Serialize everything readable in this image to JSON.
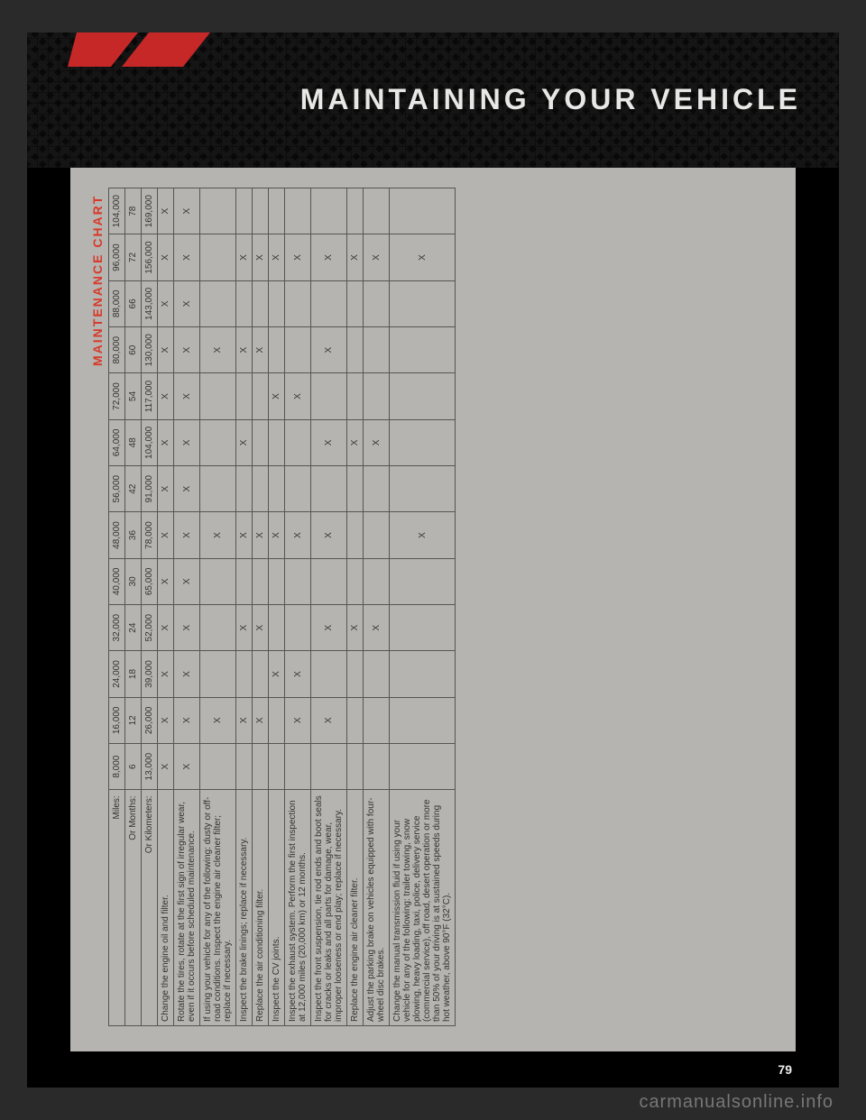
{
  "header": {
    "title": "MAINTAINING YOUR VEHICLE",
    "stripe_color": "#c62828",
    "stripe_shadow": "#000000"
  },
  "section_title": "MAINTENANCE CHART",
  "page_number": "79",
  "watermark": "carmanualsonline.info",
  "colors": {
    "page_bg": "#b5b4b0",
    "border": "#555555",
    "text": "#333333",
    "accent": "#d83a2b"
  },
  "chart": {
    "header_rows": [
      {
        "label": "Miles:",
        "values": [
          "8,000",
          "16,000",
          "24,000",
          "32,000",
          "40,000",
          "48,000",
          "56,000",
          "64,000",
          "72,000",
          "80,000",
          "88,000",
          "96,000",
          "104,000"
        ]
      },
      {
        "label": "Or Months:",
        "values": [
          "6",
          "12",
          "18",
          "24",
          "30",
          "36",
          "42",
          "48",
          "54",
          "60",
          "66",
          "72",
          "78"
        ]
      },
      {
        "label": "Or Kilometers:",
        "values": [
          "13,000",
          "26,000",
          "39,000",
          "52,000",
          "65,000",
          "78,000",
          "91,000",
          "104,000",
          "117,000",
          "130,000",
          "143,000",
          "156,000",
          "169,000"
        ]
      }
    ],
    "rows": [
      {
        "desc": "Change the engine oil and filter.",
        "marks": [
          1,
          1,
          1,
          1,
          1,
          1,
          1,
          1,
          1,
          1,
          1,
          1,
          1
        ]
      },
      {
        "desc": "Rotate the tires, rotate at the first sign of irregular wear, even if it occurs before scheduled maintenance.",
        "marks": [
          1,
          1,
          1,
          1,
          1,
          1,
          1,
          1,
          1,
          1,
          1,
          1,
          1
        ]
      },
      {
        "desc": "If using your vehicle for any of the following: dusty or off-road conditions. Inspect the engine air cleaner filter; replace if necessary.",
        "marks": [
          0,
          1,
          0,
          0,
          0,
          1,
          0,
          0,
          0,
          1,
          0,
          0,
          0
        ]
      },
      {
        "desc": "Inspect the brake linings; replace if necessary.",
        "marks": [
          0,
          1,
          0,
          1,
          0,
          1,
          0,
          1,
          0,
          1,
          0,
          1,
          0
        ]
      },
      {
        "desc": "Replace the air conditioning filter.",
        "marks": [
          0,
          1,
          0,
          1,
          0,
          1,
          0,
          0,
          0,
          1,
          0,
          1,
          0
        ]
      },
      {
        "desc": "Inspect the CV joints.",
        "marks": [
          0,
          0,
          1,
          0,
          0,
          1,
          0,
          0,
          1,
          0,
          0,
          1,
          0
        ]
      },
      {
        "desc": "Inspect the exhaust system. Perform the first inspection at 12,000 miles (20,000 km) or 12 months.",
        "marks": [
          0,
          1,
          1,
          0,
          0,
          1,
          0,
          0,
          1,
          0,
          0,
          1,
          0
        ]
      },
      {
        "desc": "Inspect the front suspension, tie rod ends and boot seals for cracks or leaks and all parts for damage, wear, improper looseness or end play; replace if necessary.",
        "marks": [
          0,
          1,
          0,
          1,
          0,
          1,
          0,
          1,
          0,
          1,
          0,
          1,
          0
        ]
      },
      {
        "desc": "Replace the engine air cleaner filter.",
        "marks": [
          0,
          0,
          0,
          1,
          0,
          0,
          0,
          1,
          0,
          0,
          0,
          1,
          0
        ]
      },
      {
        "desc": "Adjust the parking brake on vehicles equipped with four-wheel disc brakes.",
        "marks": [
          0,
          0,
          0,
          1,
          0,
          0,
          0,
          1,
          0,
          0,
          0,
          1,
          0
        ]
      },
      {
        "desc": "Change the manual transmission fluid if using your vehicle for any of the following: trailer towing, snow plowing, heavy loading, taxi, police, delivery service (commercial service), off road, desert operation or more than 50% of your driving is at sustained speeds during hot weather, above 90°F (32°C).",
        "marks": [
          0,
          0,
          0,
          0,
          0,
          1,
          0,
          0,
          0,
          0,
          0,
          1,
          0
        ]
      }
    ]
  }
}
